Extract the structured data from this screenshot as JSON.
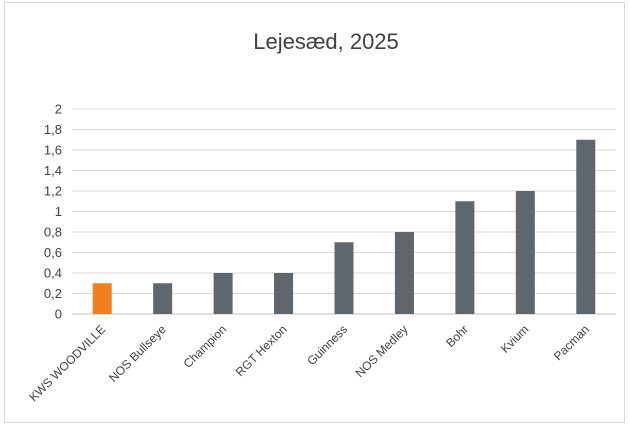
{
  "chart_data": {
    "type": "bar",
    "title": "Lejesæd, 2025",
    "xlabel": "",
    "ylabel": "",
    "ylim": [
      0,
      2
    ],
    "yticks": [
      "0",
      "0,2",
      "0,4",
      "0,6",
      "0,8",
      "1",
      "1,2",
      "1,4",
      "1,6",
      "1,8",
      "2"
    ],
    "categories": [
      "KWS WOODVILLE",
      "NOS Bullseye",
      "Champion",
      "RGT Hexton",
      "Guinness",
      "NOS Medley",
      "Bohr",
      "Kvium",
      "Pacman"
    ],
    "values": [
      0.3,
      0.3,
      0.4,
      0.4,
      0.7,
      0.8,
      1.1,
      1.2,
      1.7
    ],
    "grid": true,
    "colors": {
      "highlight": "#f07f1f",
      "default": "#5f676d",
      "gridline": "#d9d9d9",
      "axis": "#bfbfbf"
    },
    "highlight_index": 0
  }
}
